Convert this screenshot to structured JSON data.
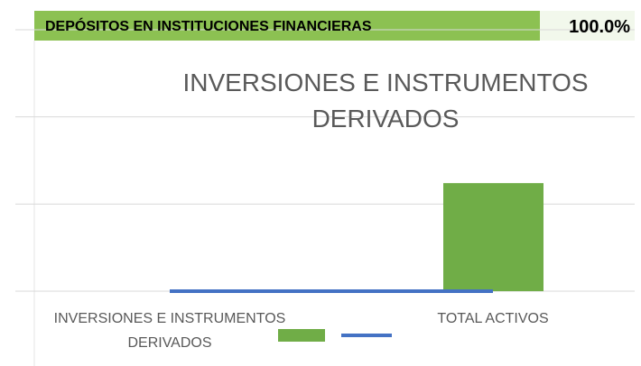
{
  "header": {
    "title": "DEPÓSITOS EN INSTITUCIONES FINANCIERAS",
    "value": "100.0%"
  },
  "chart_data": {
    "type": "bar-line",
    "title": "INVERSIONES E INSTRUMENTOS DERIVADOS",
    "categories": [
      "INVERSIONES E INSTRUMENTOS DERIVADOS",
      "TOTAL ACTIVOS"
    ],
    "series": [
      {
        "type": "bar",
        "color": "#70ad47",
        "values": [
          0,
          1.24
        ]
      },
      {
        "type": "line",
        "color": "#4472c4",
        "values": [
          0,
          0
        ]
      }
    ],
    "ylim": [
      0,
      3
    ],
    "yticks": [
      0,
      1,
      2,
      3
    ],
    "grid": true
  }
}
